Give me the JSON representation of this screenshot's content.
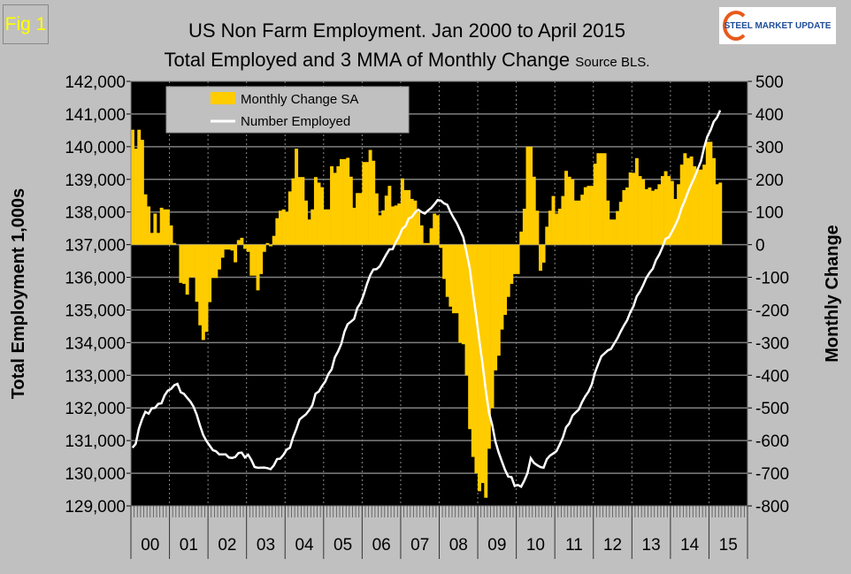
{
  "figure_label": "Fig 1",
  "logo_text": "STEEL MARKET UPDATE",
  "chart_data": {
    "type": "bar+line",
    "title": "US Non Farm Employment. Jan 2000 to April 2015",
    "subtitle": "Total Employed and 3 MMA of Monthly Change",
    "source": "Source BLS.",
    "ylabel_left": "Total Employment 1,000s",
    "ylabel_right": "Monthly Change",
    "ylim_left": [
      129000,
      142000
    ],
    "ylim_right": [
      -800,
      500
    ],
    "yticks_left": [
      "129,000",
      "130,000",
      "131,000",
      "132,000",
      "133,000",
      "134,000",
      "135,000",
      "136,000",
      "137,000",
      "138,000",
      "139,000",
      "140,000",
      "141,000",
      "142,000"
    ],
    "yticks_right": [
      "-800",
      "-700",
      "-600",
      "-500",
      "-400",
      "-300",
      "-200",
      "-100",
      "0",
      "100",
      "200",
      "300",
      "400",
      "500"
    ],
    "xtick_labels": [
      "00",
      "01",
      "02",
      "03",
      "04",
      "05",
      "06",
      "07",
      "08",
      "09",
      "10",
      "11",
      "12",
      "13",
      "14",
      "15"
    ],
    "start": "Jan 2000",
    "end": "Apr 2015",
    "legend": {
      "position": "top-left",
      "entries": [
        "Monthly Change SA",
        "Number Employed"
      ]
    },
    "colors": {
      "bars": "#FFCC00",
      "line": "#FFFFFF",
      "plot_bg": "#000000"
    },
    "series": [
      {
        "name": "Monthly Change SA",
        "type": "bar",
        "axis": "right",
        "values": [
          352,
          294,
          352,
          321,
          154,
          117,
          36,
          95,
          36,
          113,
          108,
          108,
          59,
          5,
          0,
          -117,
          -120,
          -153,
          -100,
          -100,
          -175,
          -247,
          -292,
          -267,
          -176,
          -102,
          -102,
          -76,
          -40,
          -15,
          -15,
          -18,
          -54,
          14,
          21,
          -13,
          -22,
          -95,
          -95,
          -140,
          -90,
          -22,
          5,
          -5,
          27,
          81,
          104,
          108,
          100,
          163,
          203,
          294,
          207,
          207,
          135,
          77,
          108,
          207,
          190,
          176,
          108,
          108,
          240,
          220,
          240,
          262,
          262,
          266,
          208,
          113,
          158,
          158,
          253,
          253,
          290,
          257,
          157,
          90,
          105,
          150,
          180,
          117,
          120,
          126,
          203,
          167,
          167,
          140,
          135,
          100,
          59,
          5,
          5,
          50,
          95,
          90,
          -10,
          -105,
          -160,
          -190,
          -210,
          -210,
          -300,
          -305,
          -400,
          -565,
          -650,
          -700,
          -755,
          -730,
          -775,
          -625,
          -500,
          -385,
          -340,
          -260,
          -215,
          -160,
          -120,
          -90,
          -90,
          40,
          110,
          300,
          300,
          208,
          104,
          -80,
          -55,
          55,
          104,
          149,
          95,
          110,
          149,
          226,
          208,
          200,
          135,
          135,
          153,
          176,
          180,
          180,
          248,
          280,
          280,
          280,
          135,
          77,
          77,
          103,
          131,
          167,
          175,
          221,
          220,
          265,
          210,
          200,
          170,
          175,
          165,
          170,
          185,
          210,
          225,
          210,
          195,
          140,
          185,
          245,
          280,
          265,
          270,
          240,
          230,
          230,
          245,
          315,
          315,
          265,
          185,
          190
        ]
      },
      {
        "name": "Number Employed",
        "type": "line",
        "axis": "left",
        "values": [
          130781,
          130902,
          131374,
          131660,
          131881,
          131824,
          131991,
          132000,
          132124,
          132142,
          132385,
          132530,
          132582,
          132696,
          132738,
          132480,
          132435,
          132312,
          132195,
          132036,
          131792,
          131468,
          131171,
          130990,
          130853,
          130709,
          130673,
          130580,
          130578,
          130578,
          130482,
          130468,
          130499,
          130620,
          130633,
          130483,
          130567,
          130408,
          130193,
          130168,
          130172,
          130175,
          130156,
          130128,
          130238,
          130435,
          130447,
          130563,
          130726,
          130780,
          131103,
          131359,
          131646,
          131726,
          131802,
          131931,
          132083,
          132438,
          132504,
          132670,
          132805,
          133042,
          133183,
          133548,
          133729,
          133959,
          134336,
          134565,
          134641,
          134724,
          135059,
          135219,
          135475,
          135790,
          136064,
          136239,
          136251,
          136336,
          136519,
          136696,
          136854,
          136863,
          137076,
          137248,
          137485,
          137567,
          137796,
          137847,
          137990,
          138069,
          137998,
          137952,
          138042,
          138121,
          138236,
          138365,
          138350,
          138266,
          138218,
          138001,
          137820,
          137655,
          137442,
          137222,
          136763,
          136281,
          135531,
          134833,
          134054,
          133350,
          132549,
          131854,
          131481,
          130975,
          130637,
          130364,
          130104,
          129900,
          129880,
          129611,
          129641,
          129587,
          129777,
          130002,
          130460,
          130315,
          130248,
          130190,
          130169,
          130426,
          130537,
          130607,
          130674,
          130873,
          131097,
          131407,
          131523,
          131765,
          131863,
          131954,
          132179,
          132360,
          132498,
          132712,
          133081,
          133340,
          133583,
          133673,
          133760,
          133807,
          133969,
          134134,
          134335,
          134520,
          134681,
          134928,
          135112,
          135419,
          135561,
          135757,
          135982,
          136139,
          136262,
          136524,
          136694,
          136919,
          137180,
          137224,
          137404,
          137592,
          137817,
          138126,
          138348,
          138615,
          138849,
          139062,
          139311,
          139554,
          139977,
          140306,
          140507,
          140771,
          140890,
          141111
        ]
      }
    ]
  }
}
